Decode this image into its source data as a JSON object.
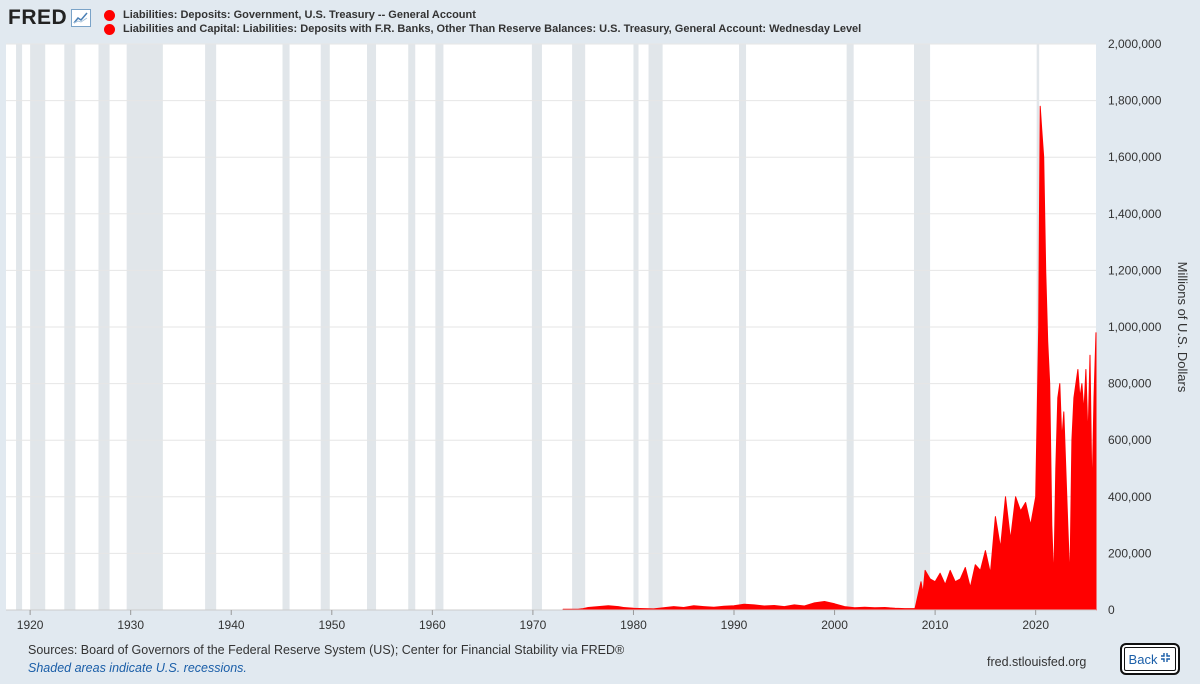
{
  "header": {
    "logo_text": "FRED",
    "logo_icon": "line-chart-icon"
  },
  "footer": {
    "source": "Sources: Board of Governors of the Federal Reserve System (US); Center for Financial Stability via FRED®",
    "note": "Shaded areas indicate U.S. recessions.",
    "site": "fred.stlouisfed.org",
    "back_label": "Back",
    "back_icon": "collapse-arrows-icon"
  },
  "colors": {
    "series": "#ff0000",
    "recession": "#e1e6ea",
    "grid": "#e6e6e6",
    "background": "#e1e9f0"
  },
  "chart_data": {
    "type": "area",
    "ylabel": "Millions of U.S. Dollars",
    "xlim": [
      1917.6,
      2026.0
    ],
    "ylim": [
      0,
      2000000
    ],
    "x_ticks": [
      1920,
      1930,
      1940,
      1950,
      1960,
      1970,
      1980,
      1990,
      2000,
      2010,
      2020
    ],
    "x_tick_labels": [
      "1920",
      "1930",
      "1940",
      "1950",
      "1960",
      "1970",
      "1980",
      "1990",
      "2000",
      "2010",
      "2020"
    ],
    "y_ticks": [
      0,
      200000,
      400000,
      600000,
      800000,
      1000000,
      1200000,
      1400000,
      1600000,
      1800000,
      2000000
    ],
    "y_tick_labels": [
      "0",
      "200,000",
      "400,000",
      "600,000",
      "800,000",
      "1,000,000",
      "1,200,000",
      "1,400,000",
      "1,600,000",
      "1,800,000",
      "2,000,000"
    ],
    "grid": true,
    "legend_position": "top-left",
    "recessions": [
      [
        1918.6,
        1919.2
      ],
      [
        1920.0,
        1921.5
      ],
      [
        1923.4,
        1924.5
      ],
      [
        1926.8,
        1927.9
      ],
      [
        1929.6,
        1933.2
      ],
      [
        1937.4,
        1938.5
      ],
      [
        1945.1,
        1945.8
      ],
      [
        1948.9,
        1949.8
      ],
      [
        1953.5,
        1954.4
      ],
      [
        1957.6,
        1958.3
      ],
      [
        1960.3,
        1961.1
      ],
      [
        1969.9,
        1970.9
      ],
      [
        1973.9,
        1975.2
      ],
      [
        1980.0,
        1980.5
      ],
      [
        1981.5,
        1982.9
      ],
      [
        1990.5,
        1991.2
      ],
      [
        2001.2,
        2001.9
      ],
      [
        2007.9,
        2009.5
      ],
      [
        2020.1,
        2020.35
      ]
    ],
    "series": [
      {
        "name": "Liabilities: Deposits: Government, U.S. Treasury -- General Account",
        "color": "#ff0000",
        "x": [
          1973.0,
          1974.5,
          1975.0,
          1975.5,
          1976.5,
          1977.5,
          1978.5,
          1979.0
        ],
        "y": [
          3000,
          3000,
          5000,
          9000,
          12000,
          15000,
          12000,
          9000
        ]
      },
      {
        "name": "Liabilities and Capital: Liabilities: Deposits with F.R. Banks, Other Than Reserve Balances: U.S. Treasury, General Account: Wednesday Level",
        "color": "#ff0000",
        "x": [
          1979.0,
          1980.0,
          1982.0,
          1983.0,
          1984.0,
          1985.0,
          1986.0,
          1987.0,
          1988.0,
          1989.0,
          1990.0,
          1991.0,
          1992.0,
          1993.0,
          1994.0,
          1995.0,
          1996.0,
          1997.0,
          1998.0,
          1999.0,
          2000.0,
          2001.0,
          2002.0,
          2003.0,
          2004.0,
          2005.0,
          2006.0,
          2007.0,
          2008.0,
          2008.6,
          2008.8,
          2009.0,
          2009.5,
          2010.0,
          2010.5,
          2011.0,
          2011.5,
          2012.0,
          2012.5,
          2013.0,
          2013.5,
          2014.0,
          2014.5,
          2015.0,
          2015.5,
          2016.0,
          2016.5,
          2017.0,
          2017.5,
          2018.0,
          2018.5,
          2019.0,
          2019.5,
          2020.0,
          2020.3,
          2020.45,
          2020.6,
          2020.8,
          2021.0,
          2021.2,
          2021.4,
          2021.6,
          2021.8,
          2022.0,
          2022.2,
          2022.4,
          2022.6,
          2022.8,
          2023.0,
          2023.2,
          2023.4,
          2023.6,
          2023.8,
          2024.0,
          2024.2,
          2024.4,
          2024.6,
          2024.8,
          2025.0,
          2025.2,
          2025.4,
          2025.6,
          2025.8,
          2026.0
        ],
        "y": [
          9000,
          6000,
          4000,
          8000,
          12000,
          9000,
          15000,
          12000,
          10000,
          13000,
          15000,
          20000,
          18000,
          14000,
          16000,
          12000,
          18000,
          14000,
          25000,
          30000,
          22000,
          12000,
          8000,
          10000,
          8000,
          9000,
          6000,
          5000,
          5000,
          100000,
          60000,
          140000,
          110000,
          100000,
          130000,
          90000,
          140000,
          100000,
          110000,
          150000,
          80000,
          160000,
          140000,
          210000,
          130000,
          330000,
          220000,
          400000,
          250000,
          400000,
          350000,
          380000,
          300000,
          400000,
          1000000,
          1780000,
          1700000,
          1600000,
          1200000,
          950000,
          800000,
          300000,
          100000,
          500000,
          750000,
          800000,
          600000,
          700000,
          500000,
          300000,
          100000,
          600000,
          750000,
          800000,
          850000,
          750000,
          800000,
          700000,
          850000,
          600000,
          900000,
          400000,
          750000,
          980000
        ]
      }
    ]
  }
}
